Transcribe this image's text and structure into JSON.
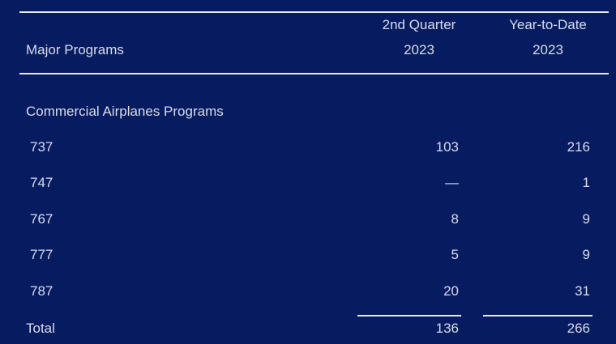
{
  "header": {
    "col_label": "Major Programs",
    "quarter_title": "2nd Quarter",
    "quarter_year": "2023",
    "ytd_title": "Year-to-Date",
    "ytd_year": "2023"
  },
  "section_title": "Commercial Airplanes Programs",
  "rows": [
    {
      "program": "737",
      "quarter": "103",
      "ytd": "216"
    },
    {
      "program": "747",
      "quarter": "—",
      "ytd": "1"
    },
    {
      "program": "767",
      "quarter": "8",
      "ytd": "9"
    },
    {
      "program": "777",
      "quarter": "5",
      "ytd": "9"
    },
    {
      "program": "787",
      "quarter": "20",
      "ytd": "31"
    }
  ],
  "total": {
    "label": "Total",
    "quarter": "136",
    "ytd": "266"
  },
  "colors": {
    "background": "#071c60",
    "text": "#d7dce9",
    "rule": "#e8ebf3"
  }
}
